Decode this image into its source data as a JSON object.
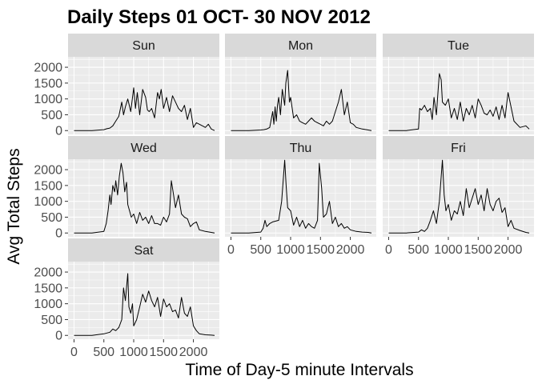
{
  "chart_data": {
    "type": "line",
    "title": "Daily Steps 01 OCT- 30 NOV 2012",
    "xlabel": "Time of Day-5 minute Intervals",
    "ylabel": "Avg Total Steps",
    "xlim": [
      -100,
      2435
    ],
    "ylim": [
      -120,
      2330
    ],
    "x_ticks": [
      0,
      500,
      1000,
      1500,
      2000
    ],
    "y_ticks": [
      0,
      500,
      1000,
      1500,
      2000
    ],
    "facet_layout": "3 columns, wrapped",
    "grid": true,
    "legend": "none",
    "line_color": "#000000",
    "panel_background": "#ebebeb",
    "strip_background": "#d9d9d9",
    "panels": [
      {
        "label": "Sun",
        "x": [
          0,
          300,
          500,
          550,
          600,
          650,
          700,
          750,
          800,
          830,
          860,
          900,
          950,
          1000,
          1030,
          1060,
          1100,
          1150,
          1200,
          1230,
          1260,
          1300,
          1350,
          1400,
          1430,
          1460,
          1500,
          1550,
          1600,
          1650,
          1700,
          1750,
          1800,
          1850,
          1900,
          1950,
          2000,
          2050,
          2100,
          2150,
          2200,
          2250,
          2300,
          2355
        ],
        "y": [
          0,
          0,
          30,
          60,
          80,
          150,
          300,
          450,
          900,
          500,
          750,
          1000,
          600,
          1350,
          700,
          1200,
          500,
          1300,
          1050,
          650,
          600,
          700,
          400,
          1200,
          1000,
          1300,
          700,
          1050,
          600,
          1100,
          900,
          700,
          600,
          800,
          350,
          700,
          100,
          250,
          200,
          150,
          100,
          200,
          50,
          0
        ]
      },
      {
        "label": "Mon",
        "x": [
          0,
          300,
          500,
          550,
          600,
          650,
          700,
          720,
          740,
          760,
          780,
          800,
          830,
          860,
          900,
          920,
          950,
          980,
          1000,
          1050,
          1100,
          1150,
          1200,
          1250,
          1300,
          1350,
          1400,
          1450,
          1500,
          1550,
          1600,
          1650,
          1700,
          1750,
          1800,
          1850,
          1900,
          1950,
          2000,
          2050,
          2100,
          2200,
          2300,
          2355
        ],
        "y": [
          0,
          0,
          20,
          30,
          50,
          100,
          600,
          200,
          750,
          300,
          800,
          1050,
          500,
          1300,
          800,
          1500,
          1900,
          900,
          1050,
          400,
          500,
          300,
          250,
          200,
          300,
          400,
          300,
          250,
          200,
          150,
          300,
          200,
          300,
          600,
          900,
          1300,
          500,
          900,
          250,
          200,
          100,
          50,
          20,
          0
        ]
      },
      {
        "label": "Tue",
        "x": [
          0,
          300,
          500,
          520,
          550,
          600,
          650,
          700,
          730,
          760,
          800,
          830,
          850,
          880,
          900,
          950,
          1000,
          1050,
          1100,
          1150,
          1200,
          1250,
          1300,
          1350,
          1400,
          1450,
          1500,
          1550,
          1600,
          1650,
          1700,
          1750,
          1800,
          1850,
          1900,
          1950,
          2000,
          2100,
          2200,
          2300,
          2355
        ],
        "y": [
          0,
          0,
          50,
          700,
          650,
          800,
          600,
          700,
          350,
          1050,
          500,
          1300,
          1800,
          1600,
          900,
          800,
          1000,
          400,
          700,
          350,
          900,
          300,
          700,
          500,
          800,
          400,
          1000,
          800,
          550,
          500,
          650,
          450,
          750,
          350,
          800,
          400,
          1200,
          300,
          100,
          150,
          50
        ]
      },
      {
        "label": "Wed",
        "x": [
          0,
          300,
          500,
          540,
          570,
          600,
          620,
          650,
          680,
          700,
          730,
          760,
          790,
          820,
          850,
          880,
          900,
          930,
          960,
          1000,
          1050,
          1100,
          1150,
          1200,
          1250,
          1300,
          1350,
          1400,
          1450,
          1500,
          1550,
          1600,
          1630,
          1660,
          1700,
          1750,
          1800,
          1850,
          1900,
          1950,
          2000,
          2050,
          2100,
          2200,
          2300,
          2355
        ],
        "y": [
          0,
          0,
          50,
          300,
          700,
          1200,
          900,
          1500,
          1300,
          1650,
          1200,
          1800,
          2200,
          1900,
          1300,
          1600,
          900,
          700,
          500,
          600,
          300,
          650,
          400,
          500,
          300,
          550,
          300,
          300,
          250,
          500,
          350,
          600,
          1650,
          1300,
          800,
          1200,
          600,
          500,
          450,
          200,
          300,
          350,
          100,
          50,
          20,
          0
        ]
      },
      {
        "label": "Thu",
        "x": [
          0,
          300,
          500,
          540,
          570,
          600,
          650,
          700,
          800,
          850,
          900,
          925,
          950,
          1000,
          1050,
          1100,
          1150,
          1200,
          1250,
          1300,
          1350,
          1400,
          1450,
          1480,
          1520,
          1550,
          1600,
          1650,
          1700,
          1750,
          1800,
          1850,
          1900,
          1950,
          2000,
          2100,
          2200,
          2300,
          2355
        ],
        "y": [
          0,
          0,
          30,
          150,
          400,
          200,
          300,
          350,
          400,
          1000,
          2300,
          1500,
          800,
          700,
          250,
          500,
          200,
          400,
          150,
          300,
          200,
          150,
          400,
          2200,
          1400,
          500,
          600,
          1000,
          300,
          500,
          200,
          300,
          150,
          200,
          100,
          50,
          30,
          20,
          0
        ]
      },
      {
        "label": "Fri",
        "x": [
          0,
          300,
          500,
          550,
          600,
          650,
          700,
          750,
          800,
          850,
          900,
          930,
          960,
          1000,
          1050,
          1100,
          1150,
          1200,
          1250,
          1300,
          1350,
          1400,
          1450,
          1500,
          1550,
          1600,
          1650,
          1700,
          1750,
          1800,
          1850,
          1900,
          1950,
          2000,
          2050,
          2100,
          2200,
          2300,
          2355
        ],
        "y": [
          0,
          0,
          30,
          100,
          50,
          150,
          400,
          700,
          300,
          1000,
          2300,
          1200,
          700,
          900,
          400,
          700,
          600,
          1000,
          550,
          1400,
          800,
          1100,
          1400,
          900,
          1200,
          700,
          1400,
          900,
          700,
          1000,
          1100,
          650,
          800,
          200,
          400,
          150,
          80,
          20,
          0
        ]
      },
      {
        "label": "Sat",
        "x": [
          0,
          300,
          500,
          600,
          650,
          700,
          750,
          800,
          830,
          860,
          900,
          920,
          950,
          980,
          1000,
          1050,
          1100,
          1150,
          1200,
          1250,
          1300,
          1350,
          1400,
          1450,
          1500,
          1550,
          1600,
          1650,
          1700,
          1750,
          1800,
          1850,
          1900,
          1950,
          2000,
          2050,
          2100,
          2200,
          2300,
          2355
        ],
        "y": [
          0,
          0,
          50,
          100,
          200,
          150,
          250,
          500,
          1500,
          1100,
          1950,
          900,
          700,
          1000,
          300,
          500,
          900,
          1300,
          1050,
          1400,
          1100,
          900,
          1200,
          600,
          1150,
          900,
          1000,
          750,
          800,
          550,
          1200,
          700,
          600,
          900,
          300,
          150,
          50,
          20,
          10,
          0
        ]
      }
    ]
  }
}
